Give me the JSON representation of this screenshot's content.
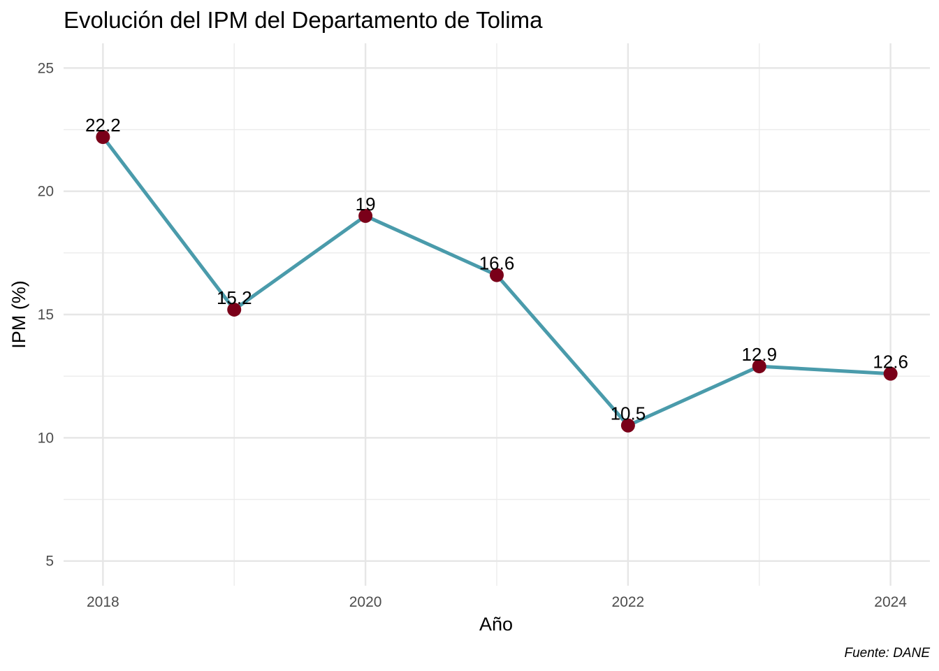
{
  "chart_data": {
    "type": "line",
    "title": "Evolución del IPM del Departamento de Tolima",
    "xlabel": "Año",
    "ylabel": "IPM (%)",
    "caption": "Fuente: DANE",
    "x": [
      2018,
      2019,
      2020,
      2021,
      2022,
      2023,
      2024
    ],
    "values": [
      22.2,
      15.2,
      19,
      16.6,
      10.5,
      12.9,
      12.6
    ],
    "data_labels": [
      "22.2",
      "15.2",
      "19",
      "16.6",
      "10.5",
      "12.9",
      "12.6"
    ],
    "x_ticks": [
      2018,
      2020,
      2022,
      2024
    ],
    "x_tick_labels": [
      "2018",
      "2020",
      "2022",
      "2024"
    ],
    "y_ticks": [
      5,
      10,
      15,
      20,
      25
    ],
    "y_tick_labels": [
      "5",
      "10",
      "15",
      "20",
      "25"
    ],
    "xlim": [
      2017.7,
      2024.3
    ],
    "ylim": [
      4,
      26
    ],
    "grid": true,
    "line_color": "#4a9bab",
    "point_color": "#7a0019"
  }
}
